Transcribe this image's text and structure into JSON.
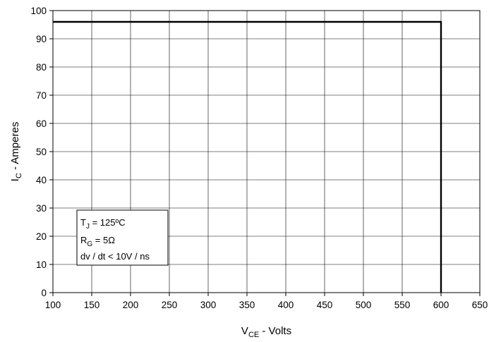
{
  "chart_data": {
    "type": "line",
    "xlim": [
      100,
      650
    ],
    "ylim": [
      0,
      100
    ],
    "x_ticks": [
      "100",
      "150",
      "200",
      "250",
      "300",
      "350",
      "400",
      "450",
      "500",
      "550",
      "600",
      "650"
    ],
    "y_ticks": [
      "0",
      "10",
      "20",
      "30",
      "40",
      "50",
      "60",
      "70",
      "80",
      "90",
      "100"
    ],
    "grid": true,
    "xlabel": {
      "main": "V",
      "sub": "CE",
      "rest": " - Volts"
    },
    "ylabel": {
      "main": "I",
      "sub": "C",
      "rest": " - Amperes"
    },
    "series": [
      {
        "x": [
          100,
          600,
          600
        ],
        "y": [
          96,
          96,
          0
        ]
      }
    ],
    "annotation": {
      "lines": [
        {
          "main": "T",
          "sub": "J",
          "rest": " = 125ºC"
        },
        {
          "main": "R",
          "sub": "G",
          "rest": " = 5Ω"
        },
        {
          "main": "dv / dt < 10V / ns",
          "sub": "",
          "rest": ""
        }
      ]
    }
  }
}
